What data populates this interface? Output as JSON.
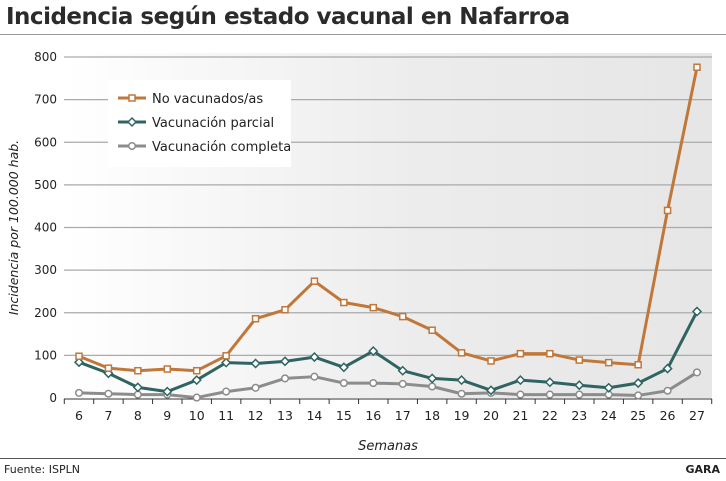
{
  "title": "Incidencia según estado vacunal en Nafarroa",
  "source": "Fuente: ISPLN",
  "brand": "GARA",
  "chart_data": {
    "type": "line",
    "title": "Incidencia según estado vacunal en Nafarroa",
    "xlabel": "Semanas",
    "ylabel": "Incidencia por 100.000 hab.",
    "ylim": [
      0,
      800
    ],
    "yticks": [
      0,
      100,
      200,
      300,
      400,
      500,
      600,
      700,
      800
    ],
    "grid": true,
    "legend": "top-left",
    "x": [
      6,
      7,
      8,
      9,
      10,
      11,
      12,
      13,
      14,
      15,
      16,
      17,
      18,
      19,
      20,
      21,
      22,
      23,
      24,
      25,
      26,
      27
    ],
    "series": [
      {
        "name": "No vacunados/as",
        "color": "#c0773a",
        "marker": "square",
        "values": [
          98,
          70,
          64,
          68,
          64,
          99,
          186,
          207,
          274,
          224,
          212,
          191,
          159,
          106,
          87,
          104,
          104,
          89,
          83,
          78,
          440,
          776
        ]
      },
      {
        "name": "Vacunación parcial",
        "color": "#2f6462",
        "marker": "diamond",
        "values": [
          84,
          58,
          25,
          15,
          42,
          83,
          81,
          86,
          96,
          72,
          110,
          64,
          46,
          42,
          18,
          42,
          37,
          30,
          24,
          35,
          69,
          203
        ]
      },
      {
        "name": "Vacunación completa",
        "color": "#8c8c8c",
        "marker": "circle",
        "values": [
          12,
          10,
          8,
          8,
          1,
          15,
          24,
          46,
          50,
          35,
          35,
          33,
          27,
          10,
          12,
          8,
          8,
          8,
          8,
          6,
          17,
          60
        ]
      }
    ]
  }
}
